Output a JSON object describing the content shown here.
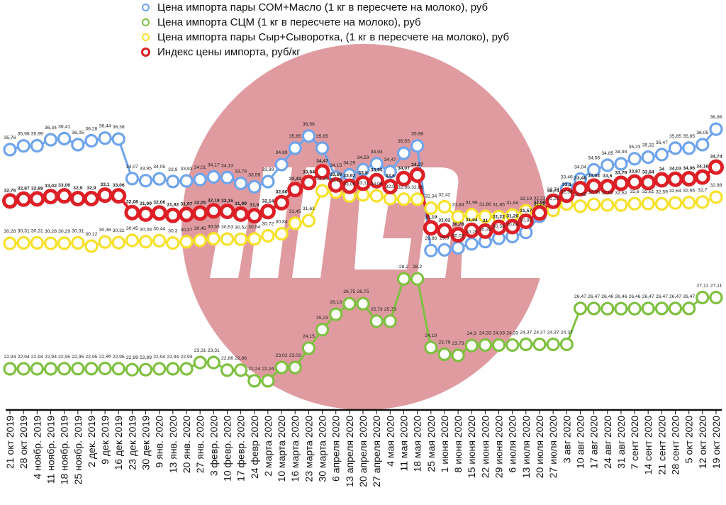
{
  "chart_data": {
    "type": "line",
    "title": "",
    "xlabel": "",
    "ylabel": "",
    "ylim": [
      22,
      37.3
    ],
    "legend_position": "top",
    "categories": [
      "21 окт 2019",
      "28 окт 2019",
      "4 ноябр. 2019",
      "11 ноябр. 2019",
      "18 ноябр. 2019",
      "25 ноябр. 2019",
      "2 дек. 2019",
      "9 дек 2019",
      "16 дек 2019",
      "23 дек 2019",
      "30 дек 2019",
      "9 янв. 2020",
      "13 янв. 2020",
      "20 янв. 2020",
      "27 янв. 2020",
      "3 февр. 2020",
      "10 февр. 2020",
      "17 февр. 2020",
      "24 февр 2020",
      "2 марта 2020",
      "10 марта 2020",
      "16 марта 2020",
      "23 марта 2020",
      "30 марта 2020",
      "6 апреля 2020",
      "13 апреля 2020",
      "20 апреля 2020",
      "27 апреля 2020",
      "4 мая 2020",
      "11 мая 2020",
      "18 мая 2020",
      "25 мая 2020",
      "1 июня 2020",
      "8 июня 2020",
      "15 июня 2020",
      "22 июня 2020",
      "29 июня 2020",
      "6 июля 2020",
      "13 июля 2020",
      "20 июля 2020",
      "27 июля 2020",
      "3 авг 2020",
      "10 авг 2020",
      "17 авг 2020",
      "24 авг 2020",
      "31 авг 2020",
      "7 сент 2020",
      "14 сент 2020",
      "21 сент 2020",
      "28 сент 2020",
      "5 окт 2020",
      "12 окт 2020",
      "19 окт 2020"
    ],
    "series": [
      {
        "name": "Цена импорта пары СОМ+Масло (1 кг в пересчете на молоко), руб",
        "color": "#6fa4ec",
        "bold": false,
        "values": [
          35.76,
          35.98,
          35.99,
          36.34,
          36.41,
          36.05,
          36.28,
          36.44,
          36.38,
          34.07,
          33.95,
          34.05,
          33.9,
          33.93,
          34.01,
          34.17,
          34.13,
          33.79,
          33.59,
          33.89,
          34.89,
          35.85,
          36.56,
          35.85,
          34.15,
          34.29,
          34.59,
          34.94,
          34.47,
          35.55,
          35.98,
          29.86,
          29.9,
          30.02,
          30.25,
          30.38,
          30.58,
          30.68,
          30.92,
          31.86,
          32.74,
          33.46,
          34.04,
          34.58,
          34.85,
          34.93,
          35.23,
          35.32,
          35.47,
          35.85,
          35.85,
          36.05,
          36.96
        ]
      },
      {
        "name": "Цена импорта СЦМ (1 кг в пересчете на молоко), руб",
        "color": "#7fc041",
        "bold": false,
        "values": [
          22.94,
          22.94,
          22.94,
          22.94,
          22.95,
          22.95,
          22.95,
          22.96,
          22.95,
          22.89,
          22.89,
          22.94,
          22.94,
          22.94,
          23.31,
          23.31,
          22.86,
          22.86,
          22.24,
          22.24,
          23.02,
          23.02,
          24.15,
          25.23,
          26.13,
          26.75,
          26.75,
          25.73,
          25.73,
          28.2,
          28.2,
          24.19,
          23.79,
          23.73,
          24.3,
          24.33,
          24.33,
          24.33,
          24.37,
          24.37,
          24.37,
          24.37,
          26.47,
          26.47,
          26.46,
          26.46,
          26.46,
          26.47,
          26.47,
          26.47,
          26.47,
          27.11,
          27.11
        ]
      },
      {
        "name": "Цена импорта пары Сыр+Сыворотка, (1 кг в пересчете на молоко), руб",
        "color": "#f6e12a",
        "bold": false,
        "values": [
          30.28,
          30.31,
          30.31,
          30.28,
          30.29,
          30.31,
          30.12,
          30.36,
          30.32,
          30.45,
          30.38,
          30.44,
          30.3,
          30.37,
          30.45,
          30.55,
          30.53,
          30.52,
          30.54,
          30.72,
          30.84,
          31.45,
          31.61,
          33.35,
          33.28,
          33.05,
          33.11,
          33.06,
          32.9,
          32.86,
          32.86,
          32.34,
          32.42,
          31.84,
          31.96,
          31.86,
          31.85,
          31.94,
          32.19,
          32.22,
          32.21,
          32.58,
          32.45,
          32.56,
          32.52,
          32.52,
          32.6,
          32.61,
          32.59,
          32.64,
          32.66,
          32.7,
          32.98
        ]
      },
      {
        "name": "Индекс цены импорта, руб/кг",
        "color": "#dd1f26",
        "bold": true,
        "values": [
          32.76,
          32.87,
          32.88,
          33.02,
          33.06,
          32.9,
          32.9,
          33.1,
          33.06,
          32.08,
          31.99,
          32.06,
          31.92,
          31.97,
          32.05,
          32.18,
          32.15,
          31.99,
          31.9,
          32.14,
          32.66,
          33.43,
          33.84,
          34.47,
          33.69,
          33.62,
          33.8,
          33.95,
          33.6,
          34.07,
          34.27,
          31.19,
          31.02,
          30.78,
          31.04,
          31,
          31.22,
          31.26,
          31.57,
          32.06,
          32.74,
          33.1,
          33.48,
          33.63,
          33.6,
          33.79,
          33.87,
          33.84,
          34,
          34.03,
          34.06,
          34.16,
          34.74
        ]
      }
    ]
  },
  "watermark": {
    "circle_color": "#d9898f"
  }
}
